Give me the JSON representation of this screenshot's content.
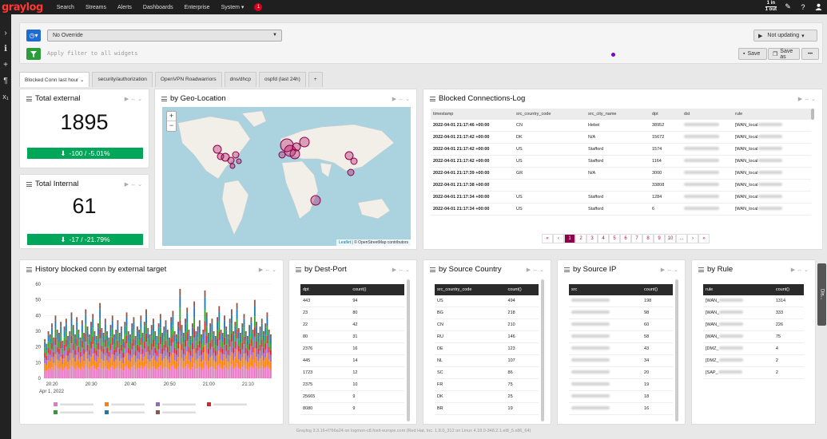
{
  "nav": {
    "logo": "graylog",
    "items": [
      "Search",
      "Streams",
      "Alerts",
      "Dashboards",
      "Enterprise",
      "System ▾"
    ],
    "notification_count": "1",
    "throughput_in": "1 in",
    "throughput_out": "1 out"
  },
  "toolbar": {
    "override": "No Override",
    "filter_placeholder": "Apply filter to all widgets",
    "not_updating": "Not updating",
    "save": "Save",
    "save_as": "Save as",
    "more": "•••"
  },
  "tabs": [
    "Blocked Conn last hour",
    "security/authorization",
    "OpenVPN Roadwarriors",
    "dns/dhcp",
    "ospfd (last 24h)",
    "+"
  ],
  "total_external": {
    "title": "Total external",
    "value": "1895",
    "trend": "-100 / -5.01%"
  },
  "total_internal": {
    "title": "Total Internal",
    "value": "61",
    "trend": "-17 / -21.79%"
  },
  "geo": {
    "title": "by Geo-Location",
    "zoom_in": "+",
    "zoom_out": "−",
    "attribution_leaflet": "Leaflet",
    "attribution_rest": " | © OpenStreetMap contributors"
  },
  "blocked_log": {
    "title": "Blocked Connections-Log",
    "columns": [
      "timestamp",
      "src_country_code",
      "src_city_name",
      "dpt",
      "dst",
      "rule"
    ],
    "rows": [
      [
        "2022-04-01 21:17:46 +00:00",
        "CN",
        "Hebei",
        "38952",
        "",
        "[WAN_local"
      ],
      [
        "2022-04-01 21:17:42 +00:00",
        "DK",
        "N/A",
        "15672",
        "",
        "[WAN_local"
      ],
      [
        "2022-04-01 21:17:42 +00:00",
        "US",
        "Stafford",
        "1574",
        "",
        "[WAN_local"
      ],
      [
        "2022-04-01 21:17:42 +00:00",
        "US",
        "Stafford",
        "1164",
        "",
        "[WAN_local"
      ],
      [
        "2022-04-01 21:17:39 +00:00",
        "GR",
        "N/A",
        "3000",
        "",
        "[WAN_local"
      ],
      [
        "2022-04-01 21:17:38 +00:00",
        "",
        "",
        "33808",
        "",
        "[WAN_local"
      ],
      [
        "2022-04-01 21:17:34 +00:00",
        "US",
        "Stafford",
        "1284",
        "",
        "[WAN_local"
      ],
      [
        "2022-04-01 21:17:34 +00:00",
        "US",
        "Stafford",
        "6",
        "",
        "[WAN_local"
      ]
    ],
    "pages": [
      "«",
      "‹",
      "1",
      "2",
      "3",
      "4",
      "5",
      "6",
      "7",
      "8",
      "9",
      "10",
      "...",
      "›",
      "»"
    ]
  },
  "history": {
    "title": "History blocked conn by external target"
  },
  "chart_data": {
    "type": "bar",
    "title": "History blocked conn by external target",
    "xlabel": "",
    "ylabel": "",
    "ylim": [
      0,
      60
    ],
    "yticks": [
      "0",
      "10",
      "20",
      "30",
      "40",
      "50",
      "60"
    ],
    "xticks": [
      "20:20",
      "20:30",
      "20:40",
      "20:50",
      "21:00",
      "21:10"
    ],
    "date_label": "Apr 1, 2022",
    "series_colors": [
      "#e377c2",
      "#ff7f0e",
      "#9467bd",
      "#d62728",
      "#2ca02c",
      "#1f77b4",
      "#8c564b"
    ],
    "totals": [
      25,
      22,
      30,
      28,
      35,
      26,
      40,
      31,
      29,
      36,
      24,
      33,
      38,
      27,
      30,
      42,
      34,
      28,
      39,
      31,
      26,
      37,
      29,
      44,
      33,
      28,
      36,
      41,
      30,
      27,
      35,
      48,
      32,
      29,
      38,
      30,
      26,
      34,
      40,
      28,
      31,
      37,
      29,
      33,
      25,
      36,
      42,
      30,
      28,
      35,
      39,
      27,
      33,
      31,
      40,
      29,
      36,
      44,
      32,
      28,
      34,
      38,
      30,
      27,
      35,
      41,
      29,
      33,
      37,
      31,
      26,
      39,
      43,
      30,
      28,
      36,
      57,
      34,
      29,
      38,
      45,
      31,
      27,
      35,
      49,
      30,
      33,
      37,
      28,
      31,
      56,
      42,
      29,
      35,
      38,
      30,
      27,
      39,
      46,
      31,
      29,
      40,
      33,
      28,
      38,
      44,
      30,
      36,
      48,
      32,
      29,
      35,
      41,
      30,
      27,
      34,
      39,
      31,
      50,
      36,
      29,
      33,
      38,
      30,
      35,
      42,
      31,
      28
    ]
  },
  "dest_port": {
    "title": "by Dest-Port",
    "columns": [
      "dpt",
      "count()"
    ],
    "rows": [
      [
        "443",
        "94"
      ],
      [
        "23",
        "80"
      ],
      [
        "22",
        "42"
      ],
      [
        "80",
        "31"
      ],
      [
        "2376",
        "16"
      ],
      [
        "445",
        "14"
      ],
      [
        "1723",
        "12"
      ],
      [
        "2375",
        "10"
      ],
      [
        "25665",
        "9"
      ],
      [
        "8080",
        "9"
      ]
    ]
  },
  "src_country": {
    "title": "by Source Country",
    "columns": [
      "src_country_code",
      "count()"
    ],
    "rows": [
      [
        "US",
        "494"
      ],
      [
        "BG",
        "218"
      ],
      [
        "CN",
        "210"
      ],
      [
        "RU",
        "146"
      ],
      [
        "DE",
        "123"
      ],
      [
        "NL",
        "107"
      ],
      [
        "SC",
        "86"
      ],
      [
        "FR",
        "75"
      ],
      [
        "DK",
        "25"
      ],
      [
        "BR",
        "19"
      ]
    ]
  },
  "src_ip": {
    "title": "by Source IP",
    "columns": [
      "src",
      "count()"
    ],
    "rows": [
      [
        "",
        "198"
      ],
      [
        "",
        "98"
      ],
      [
        "",
        "60"
      ],
      [
        "",
        "58"
      ],
      [
        "",
        "43"
      ],
      [
        "",
        "34"
      ],
      [
        "",
        "20"
      ],
      [
        "",
        "19"
      ],
      [
        "",
        "18"
      ],
      [
        "",
        "16"
      ]
    ]
  },
  "by_rule": {
    "title": "by Rule",
    "columns": [
      "rule",
      "count()"
    ],
    "rows": [
      [
        "[WAN_",
        "1314"
      ],
      [
        "[WAN_",
        "333"
      ],
      [
        "[WAN_",
        "226"
      ],
      [
        "[WAN_",
        "75"
      ],
      [
        "[DMZ_",
        "4"
      ],
      [
        "[DMZ_",
        "2"
      ],
      [
        "[SAP_",
        "2"
      ]
    ]
  },
  "footer": "Graylog 3.3.16+f766a24 on logmon-c8.foxit-europe.com (Red Hat, Inc. 1.8.0_312 on Linux 4.18.0-348.2.1.el8_5.x86_64)",
  "side_tab": "Dis..."
}
